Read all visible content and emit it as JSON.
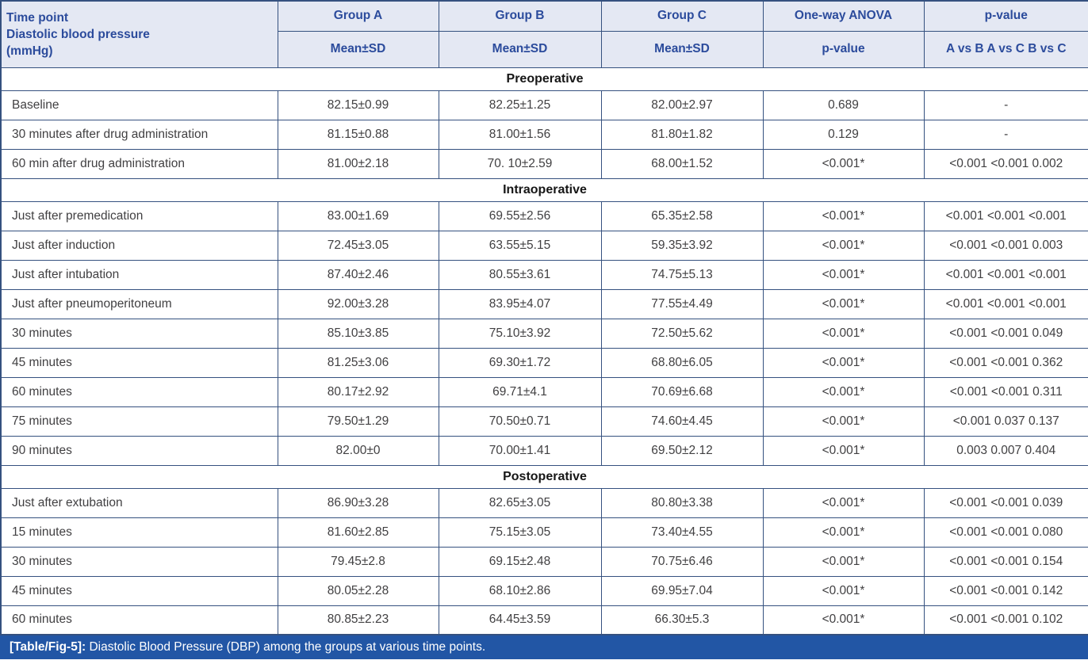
{
  "colors": {
    "border": "#35517f",
    "header_bg": "#e4e8f3",
    "header_text": "#2b4b9c",
    "body_text": "#414042",
    "caption_bg": "#2256a5",
    "caption_text": "#ffffff"
  },
  "table": {
    "header": {
      "timepoint_line1": "Time point",
      "timepoint_line2": "Diastolic blood pressure",
      "timepoint_line3": "(mmHg)",
      "group_a": "Group A",
      "group_b": "Group B",
      "group_c": "Group C",
      "anova": "One-way ANOVA",
      "pvalue": "p-value",
      "mean_sd_a": "Mean±SD",
      "mean_sd_b": "Mean±SD",
      "mean_sd_c": "Mean±SD",
      "anova_sub": "p-value",
      "pvalue_sub": "A vs B A vs C B vs C"
    },
    "sections": [
      {
        "title": "Preoperative",
        "rows": [
          {
            "label": "Baseline",
            "a": "82.15±0.99",
            "b": "82.25±1.25",
            "c": "82.00±2.97",
            "anova": "0.689",
            "p": "-"
          },
          {
            "label": "30 minutes after drug administration",
            "a": "81.15±0.88",
            "b": "81.00±1.56",
            "c": "81.80±1.82",
            "anova": "0.129",
            "p": "-"
          },
          {
            "label": "60 min after drug administration",
            "a": "81.00±2.18",
            "b": "70. 10±2.59",
            "c": "68.00±1.52",
            "anova": "<0.001*",
            "p": "<0.001 <0.001 0.002"
          }
        ]
      },
      {
        "title": "Intraoperative",
        "rows": [
          {
            "label": "Just after premedication",
            "a": "83.00±1.69",
            "b": "69.55±2.56",
            "c": "65.35±2.58",
            "anova": "<0.001*",
            "p": "<0.001 <0.001 <0.001"
          },
          {
            "label": "Just after induction",
            "a": "72.45±3.05",
            "b": "63.55±5.15",
            "c": "59.35±3.92",
            "anova": "<0.001*",
            "p": "<0.001 <0.001 0.003"
          },
          {
            "label": "Just after intubation",
            "a": "87.40±2.46",
            "b": "80.55±3.61",
            "c": "74.75±5.13",
            "anova": "<0.001*",
            "p": "<0.001 <0.001 <0.001"
          },
          {
            "label": "Just after pneumoperitoneum",
            "a": "92.00±3.28",
            "b": "83.95±4.07",
            "c": "77.55±4.49",
            "anova": "<0.001*",
            "p": "<0.001 <0.001 <0.001"
          },
          {
            "label": "30 minutes",
            "a": "85.10±3.85",
            "b": "75.10±3.92",
            "c": "72.50±5.62",
            "anova": "<0.001*",
            "p": "<0.001 <0.001 0.049"
          },
          {
            "label": "45 minutes",
            "a": "81.25±3.06",
            "b": "69.30±1.72",
            "c": "68.80±6.05",
            "anova": "<0.001*",
            "p": "<0.001 <0.001 0.362"
          },
          {
            "label": "60 minutes",
            "a": "80.17±2.92",
            "b": "69.71±4.1",
            "c": "70.69±6.68",
            "anova": "<0.001*",
            "p": "<0.001 <0.001 0.311"
          },
          {
            "label": "75 minutes",
            "a": "79.50±1.29",
            "b": "70.50±0.71",
            "c": "74.60±4.45",
            "anova": "<0.001*",
            "p": "<0.001 0.037 0.137"
          },
          {
            "label": "90 minutes",
            "a": "82.00±0",
            "b": "70.00±1.41",
            "c": "69.50±2.12",
            "anova": "<0.001*",
            "p": "0.003 0.007 0.404"
          }
        ]
      },
      {
        "title": "Postoperative",
        "rows": [
          {
            "label": "Just after extubation",
            "a": "86.90±3.28",
            "b": "82.65±3.05",
            "c": "80.80±3.38",
            "anova": "<0.001*",
            "p": "<0.001 <0.001 0.039"
          },
          {
            "label": "15 minutes",
            "a": "81.60±2.85",
            "b": "75.15±3.05",
            "c": "73.40±4.55",
            "anova": "<0.001*",
            "p": "<0.001 <0.001 0.080"
          },
          {
            "label": "30 minutes",
            "a": "79.45±2.8",
            "b": "69.15±2.48",
            "c": "70.75±6.46",
            "anova": "<0.001*",
            "p": "<0.001 <0.001 0.154"
          },
          {
            "label": "45 minutes",
            "a": "80.05±2.28",
            "b": "68.10±2.86",
            "c": "69.95±7.04",
            "anova": "<0.001*",
            "p": "<0.001 <0.001 0.142"
          },
          {
            "label": "60 minutes",
            "a": "80.85±2.23",
            "b": "64.45±3.59",
            "c": "66.30±5.3",
            "anova": "<0.001*",
            "p": "<0.001 <0.001 0.102"
          }
        ]
      }
    ],
    "caption_label": "[Table/Fig-5]:",
    "caption_text": " Diastolic Blood Pressure (DBP) among the groups at various time points."
  }
}
